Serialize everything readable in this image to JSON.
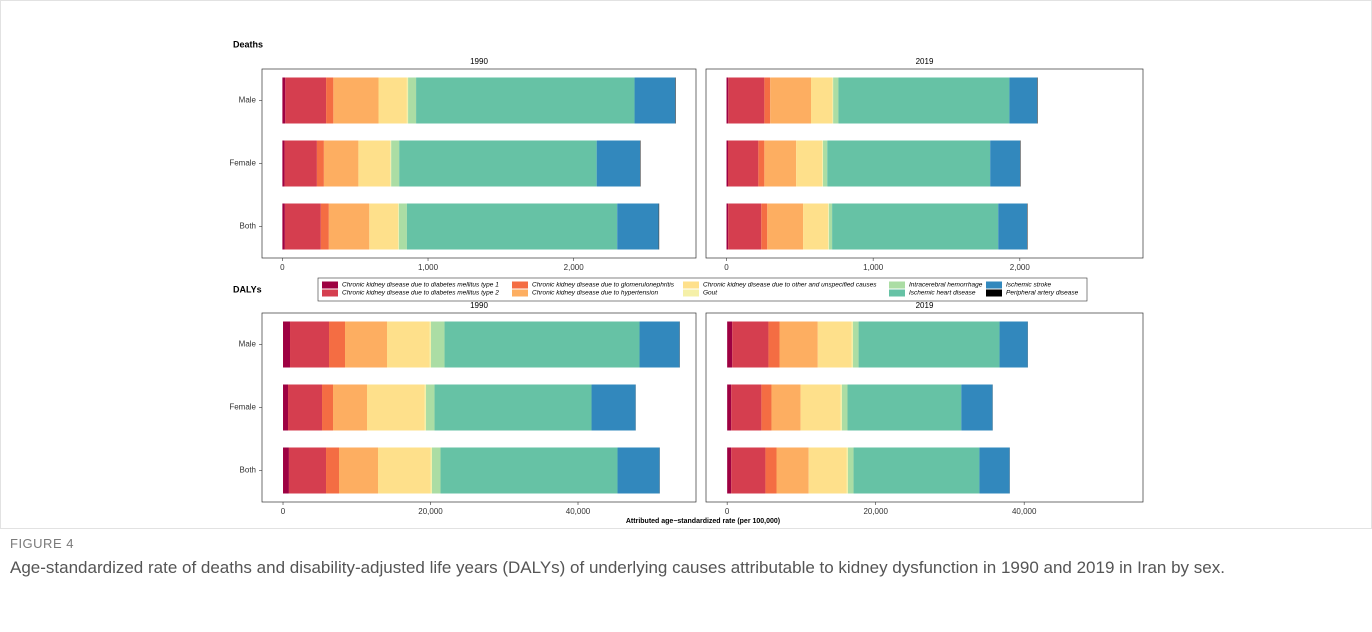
{
  "figure": {
    "row_titles": [
      "Deaths",
      "DALYs"
    ],
    "x_label": "Attributed age−standardized rate (per 100,000)",
    "label": "FIGURE 4",
    "caption": "Age-standardized rate of deaths and disability-adjusted life years (DALYs) of underlying causes attributable to kidney dysfunction in 1990 and 2019 in Iran by sex."
  },
  "chart_data": [
    {
      "type": "bar",
      "orientation": "horizontal",
      "stacked": true,
      "title": "1990",
      "categories": [
        "Male",
        "Female",
        "Both"
      ],
      "xlim": [
        -140,
        2840
      ],
      "xticks": [
        0,
        {
          "value": 1000,
          "label": "1,000"
        },
        {
          "value": 2000,
          "label": "2,000"
        }
      ],
      "series": [
        {
          "name": "Chronic kidney disease due to diabetes mellitus type 1",
          "color": "#9e0142",
          "values": [
            20,
            15,
            17
          ]
        },
        {
          "name": "Chronic kidney disease due to diabetes mellitus type 2",
          "color": "#d53e4f",
          "values": [
            280,
            222,
            247
          ]
        },
        {
          "name": "Chronic kidney disease due to glomerulonephritis",
          "color": "#f46d43",
          "values": [
            50,
            48,
            55
          ]
        },
        {
          "name": "Chronic kidney disease due to hypertension",
          "color": "#fdae61",
          "values": [
            310,
            237,
            278
          ]
        },
        {
          "name": "Chronic kidney disease due to other and unspecified causes",
          "color": "#fee08b",
          "values": [
            195,
            219,
            197
          ]
        },
        {
          "name": "Gout",
          "color": "#f5f0a8",
          "values": [
            8,
            6,
            6
          ]
        },
        {
          "name": "Intracerebral hemorrhage",
          "color": "#abdda4",
          "values": [
            55,
            55,
            55
          ]
        },
        {
          "name": "Ischemic heart disease",
          "color": "#66c2a5",
          "values": [
            1500,
            1356,
            1444
          ]
        },
        {
          "name": "Ischemic stroke",
          "color": "#3288bd",
          "values": [
            280,
            298,
            285
          ]
        },
        {
          "name": "Peripheral artery disease",
          "color": "#000000",
          "values": [
            3,
            3,
            3
          ]
        }
      ]
    },
    {
      "type": "bar",
      "orientation": "horizontal",
      "stacked": true,
      "title": "2019",
      "categories": [
        null,
        null,
        null
      ],
      "xlim": [
        -140,
        2840
      ],
      "xticks": [
        0,
        {
          "value": 1000,
          "label": "1,000"
        },
        {
          "value": 2000,
          "label": "2,000"
        }
      ],
      "series": [
        {
          "name": "Chronic kidney disease due to diabetes mellitus type 1",
          "color": "#9e0142",
          "values": [
            12,
            10,
            11
          ]
        },
        {
          "name": "Chronic kidney disease due to diabetes mellitus type 2",
          "color": "#d53e4f",
          "values": [
            246,
            207,
            226
          ]
        },
        {
          "name": "Chronic kidney disease due to glomerulonephritis",
          "color": "#f46d43",
          "values": [
            40,
            41,
            41
          ]
        },
        {
          "name": "Chronic kidney disease due to hypertension",
          "color": "#fdae61",
          "values": [
            278,
            217,
            244
          ]
        },
        {
          "name": "Chronic kidney disease due to other and unspecified causes",
          "color": "#fee08b",
          "values": [
            146,
            178,
            171
          ]
        },
        {
          "name": "Gout",
          "color": "#f5f0a8",
          "values": [
            5,
            5,
            5
          ]
        },
        {
          "name": "Intracerebral hemorrhage",
          "color": "#abdda4",
          "values": [
            36,
            29,
            22
          ]
        },
        {
          "name": "Ischemic heart disease",
          "color": "#66c2a5",
          "values": [
            1166,
            1111,
            1133
          ]
        },
        {
          "name": "Ischemic stroke",
          "color": "#3288bd",
          "values": [
            190,
            204,
            196
          ]
        },
        {
          "name": "Peripheral artery disease",
          "color": "#000000",
          "values": [
            3,
            3,
            3
          ]
        }
      ]
    },
    {
      "type": "bar",
      "orientation": "horizontal",
      "stacked": true,
      "title": "1990",
      "categories": [
        "Male",
        "Female",
        "Both"
      ],
      "xlim": [
        -2850,
        56000
      ],
      "xticks": [
        0,
        {
          "value": 20000,
          "label": "20,000"
        },
        {
          "value": 40000,
          "label": "40,000"
        }
      ],
      "series": [
        {
          "name": "Chronic kidney disease due to diabetes mellitus type 1",
          "color": "#9e0142",
          "values": [
            949,
            678,
            800
          ]
        },
        {
          "name": "Chronic kidney disease due to diabetes mellitus type 2",
          "color": "#d53e4f",
          "values": [
            5288,
            4610,
            5031
          ]
        },
        {
          "name": "Chronic kidney disease due to glomerulonephritis",
          "color": "#f46d43",
          "values": [
            2170,
            1492,
            1762
          ]
        },
        {
          "name": "Chronic kidney disease due to hypertension",
          "color": "#fdae61",
          "values": [
            5695,
            4610,
            5288
          ]
        },
        {
          "name": "Chronic kidney disease due to other and unspecified causes",
          "color": "#fee08b",
          "values": [
            5766,
            7800,
            7122
          ]
        },
        {
          "name": "Gout",
          "color": "#f5f0a8",
          "values": [
            200,
            200,
            200
          ]
        },
        {
          "name": "Intracerebral hemorrhage",
          "color": "#abdda4",
          "values": [
            1834,
            1156,
            1156
          ]
        },
        {
          "name": "Ischemic heart disease",
          "color": "#66c2a5",
          "values": [
            26440,
            21288,
            24000
          ]
        },
        {
          "name": "Ischemic stroke",
          "color": "#3288bd",
          "values": [
            5424,
            5966,
            5695
          ]
        },
        {
          "name": "Peripheral artery disease",
          "color": "#000000",
          "values": [
            30,
            20,
            25
          ]
        }
      ]
    },
    {
      "type": "bar",
      "orientation": "horizontal",
      "stacked": true,
      "title": "2019",
      "categories": [
        null,
        null,
        null
      ],
      "xlim": [
        -2850,
        56000
      ],
      "xticks": [
        0,
        {
          "value": 20000,
          "label": "20,000"
        },
        {
          "value": 40000,
          "label": "40,000"
        }
      ],
      "series": [
        {
          "name": "Chronic kidney disease due to diabetes mellitus type 1",
          "color": "#9e0142",
          "values": [
            678,
            542,
            542
          ]
        },
        {
          "name": "Chronic kidney disease due to diabetes mellitus type 2",
          "color": "#d53e4f",
          "values": [
            4881,
            4068,
            4611
          ]
        },
        {
          "name": "Chronic kidney disease due to glomerulonephritis",
          "color": "#f46d43",
          "values": [
            1492,
            1356,
            1491
          ]
        },
        {
          "name": "Chronic kidney disease due to hypertension",
          "color": "#fdae61",
          "values": [
            5152,
            3932,
            4339
          ]
        },
        {
          "name": "Chronic kidney disease due to other and unspecified causes",
          "color": "#fee08b",
          "values": [
            4546,
            5360,
            5088
          ]
        },
        {
          "name": "Gout",
          "color": "#f5f0a8",
          "values": [
            200,
            200,
            200
          ]
        },
        {
          "name": "Intracerebral hemorrhage",
          "color": "#abdda4",
          "values": [
            749,
            749,
            749
          ]
        },
        {
          "name": "Ischemic heart disease",
          "color": "#66c2a5",
          "values": [
            18983,
            15322,
            16949
          ]
        },
        {
          "name": "Ischemic stroke",
          "color": "#3288bd",
          "values": [
            3797,
            4203,
            4068
          ]
        },
        {
          "name": "Peripheral artery disease",
          "color": "#000000",
          "values": [
            20,
            20,
            20
          ]
        }
      ]
    }
  ]
}
